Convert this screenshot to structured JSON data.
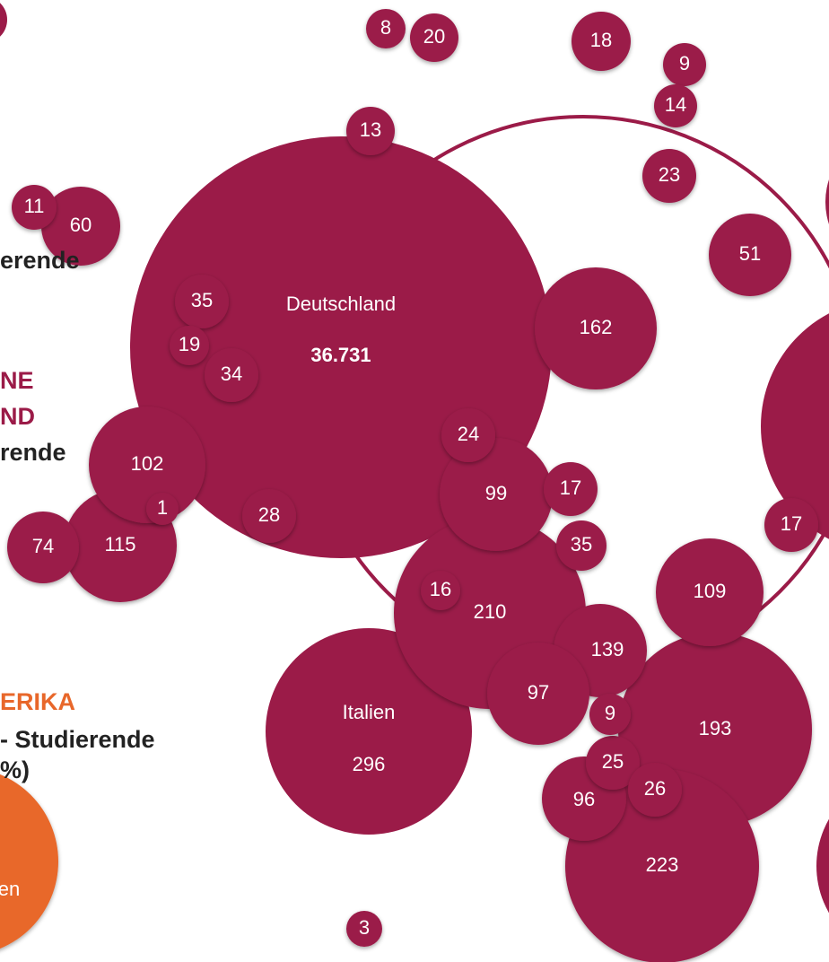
{
  "nodes": [
    {
      "label": "Deutschland",
      "value": "36.731"
    },
    {
      "label": "Italien",
      "value": "296"
    },
    {
      "label": "210"
    },
    {
      "label": "193"
    },
    {
      "label": "223"
    },
    {
      "label": "162"
    },
    {
      "label": "115"
    },
    {
      "label": "102"
    },
    {
      "label": "99"
    },
    {
      "label": "109"
    },
    {
      "label": "139"
    },
    {
      "label": "97"
    },
    {
      "label": "96"
    },
    {
      "label": "60"
    },
    {
      "label": "51"
    },
    {
      "label": "74"
    },
    {
      "label": "18"
    },
    {
      "label": "23"
    },
    {
      "label": "35"
    },
    {
      "label": "34"
    },
    {
      "label": "24"
    },
    {
      "label": "17"
    },
    {
      "label": "28"
    },
    {
      "label": "35"
    },
    {
      "label": "25"
    },
    {
      "label": "26"
    },
    {
      "label": "20"
    },
    {
      "label": "13"
    },
    {
      "label": "11"
    },
    {
      "label": "9"
    },
    {
      "label": "14"
    },
    {
      "label": "8"
    },
    {
      "label": "19"
    },
    {
      "label": "16"
    },
    {
      "label": "9"
    },
    {
      "label": "1"
    },
    {
      "label": "3"
    },
    {
      "label": "17"
    },
    {
      "label": "en"
    }
  ],
  "texts": [
    {
      "text": "erende",
      "color": "#222"
    },
    {
      "text": "NE",
      "color": "#9b1b48"
    },
    {
      "text": "ND",
      "color": "#9b1b48"
    },
    {
      "text": "rende",
      "color": "#222"
    },
    {
      "text": "ERIKA",
      "color": "#e8672a"
    },
    {
      "text": "- Studierende",
      "color": "#222"
    },
    {
      "text": "%)",
      "color": "#222"
    }
  ]
}
